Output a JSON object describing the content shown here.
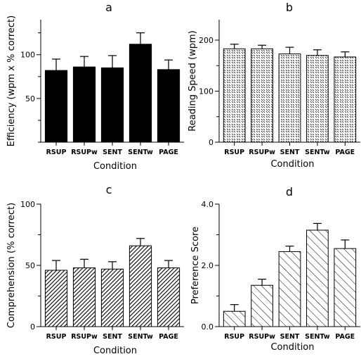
{
  "chart_data": [
    {
      "type": "bar",
      "title": "a",
      "xlabel": "Condition",
      "ylabel": "Efficiency (wpm x % correct)",
      "categories": [
        "RSUP",
        "RSUPw",
        "SENT",
        "SENTw",
        "PAGE"
      ],
      "values": [
        82,
        86,
        85,
        112,
        83
      ],
      "errors": [
        13,
        12,
        14,
        13,
        11
      ],
      "ylim": [
        0,
        140
      ],
      "yticks": [
        "50",
        "100"
      ],
      "fill": "solid",
      "grid": false
    },
    {
      "type": "bar",
      "title": "b",
      "xlabel": "Condition",
      "ylabel": "Reading Speed (wpm)",
      "categories": [
        "RSUP",
        "RSUPw",
        "SENT",
        "SENTw",
        "PAGE"
      ],
      "values": [
        183,
        183,
        173,
        170,
        167
      ],
      "errors": [
        9,
        7,
        13,
        11,
        10
      ],
      "ylim": [
        0,
        240
      ],
      "yticks": [
        "0",
        "100",
        "200"
      ],
      "fill": "crosshatch",
      "grid": false
    },
    {
      "type": "bar",
      "title": "c",
      "xlabel": "Condition",
      "ylabel": "Comprehension (% correct)",
      "categories": [
        "RSUP",
        "RSUPw",
        "SENT",
        "SENTw",
        "PAGE"
      ],
      "values": [
        46,
        48,
        47,
        66,
        48
      ],
      "errors": [
        8,
        7,
        6,
        6,
        6
      ],
      "ylim": [
        0,
        100
      ],
      "yticks": [
        "0",
        "50",
        "100"
      ],
      "fill": "dense-hatch",
      "grid": false
    },
    {
      "type": "bar",
      "title": "d",
      "xlabel": "Condition",
      "ylabel": "Preference Score",
      "categories": [
        "RSUP",
        "RSUPw",
        "SENT",
        "SENTw",
        "PAGE"
      ],
      "values": [
        0.5,
        1.35,
        2.45,
        3.15,
        2.55
      ],
      "errors": [
        0.22,
        0.2,
        0.18,
        0.22,
        0.28
      ],
      "ylim": [
        0,
        4
      ],
      "yticks": [
        "0.0",
        "2.0",
        "4.0"
      ],
      "fill": "sparse-hatch",
      "grid": false
    }
  ],
  "colors": {
    "ink": "#000000",
    "background": "#ffffff"
  }
}
